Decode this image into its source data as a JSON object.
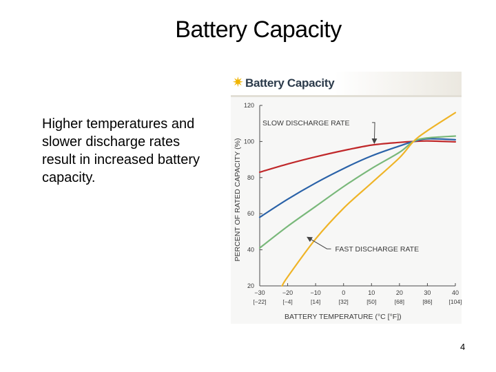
{
  "slide": {
    "title": "Battery Capacity",
    "body": "Higher temperatures and slower discharge rates result in increased battery capacity.",
    "page_number": "4"
  },
  "figure": {
    "title": "Battery Capacity"
  },
  "chart_data": {
    "type": "line",
    "title": "Battery Capacity",
    "xlabel": "BATTERY TEMPERATURE (°C [°F])",
    "ylabel": "PERCENT OF RATED CAPACITY (%)",
    "xlim": [
      -30,
      40
    ],
    "ylim": [
      20,
      120
    ],
    "x_ticks": [
      -30,
      -20,
      -10,
      0,
      10,
      20,
      30,
      40
    ],
    "x_tick_labels": [
      "−30",
      "−20",
      "−10",
      "0",
      "10",
      "20",
      "30",
      "40"
    ],
    "x_tick_sublabels": [
      "[−22]",
      "[−4]",
      "[14]",
      "[32]",
      "[50]",
      "[68]",
      "[86]",
      "[104]"
    ],
    "y_ticks": [
      20,
      40,
      60,
      80,
      100,
      120
    ],
    "y_tick_labels": [
      "20",
      "40",
      "60",
      "80",
      "100",
      "120"
    ],
    "grid": false,
    "series": [
      {
        "color": "#c0282a",
        "x": [
          -30,
          -20,
          -10,
          0,
          10,
          20,
          25,
          30,
          40
        ],
        "y": [
          83,
          87.5,
          91.5,
          95,
          98,
          99.5,
          100,
          100.3,
          99.8
        ]
      },
      {
        "color": "#2a62a8",
        "x": [
          -30,
          -20,
          -10,
          0,
          10,
          20,
          25,
          30,
          40
        ],
        "y": [
          58,
          68,
          77,
          85,
          92,
          97.5,
          100,
          101.5,
          101
        ]
      },
      {
        "color": "#79b87a",
        "x": [
          -30,
          -20,
          -10,
          0,
          10,
          20,
          25,
          30,
          40
        ],
        "y": [
          41,
          53,
          64,
          75,
          85,
          94,
          100,
          102,
          103
        ]
      },
      {
        "color": "#efb427",
        "x": [
          -22,
          -20,
          -10,
          0,
          10,
          20,
          25,
          30,
          40
        ],
        "y": [
          20,
          25,
          46,
          63,
          77,
          91,
          100,
          106,
          116
        ]
      }
    ],
    "annotations": [
      {
        "text": "SLOW DISCHARGE RATE",
        "x": -29,
        "y": 109,
        "arrow_to": [
          11,
          99
        ]
      },
      {
        "text": "FAST DISCHARGE RATE",
        "x": -3,
        "y": 39,
        "arrow_to": [
          -13,
          47
        ]
      }
    ],
    "colors": {
      "axis": "#4a4a4a",
      "text": "#3a3a3a"
    }
  }
}
